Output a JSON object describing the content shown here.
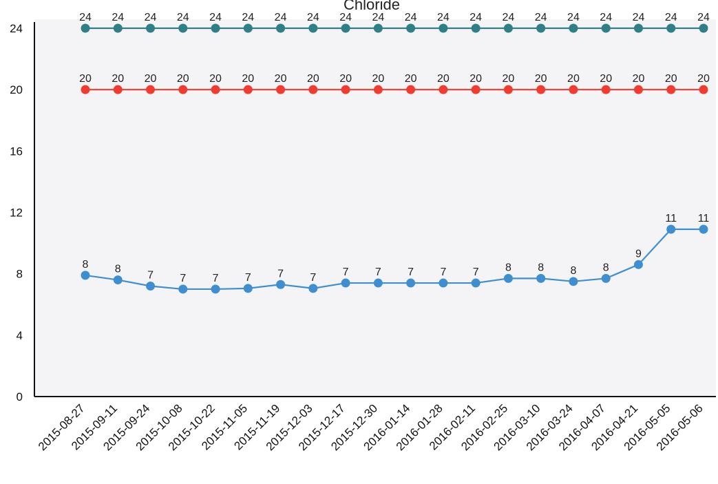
{
  "chart_data": {
    "type": "line",
    "title": "Chloride",
    "xlabel": "",
    "ylabel": "",
    "ylim": [
      0,
      24
    ],
    "yticks": [
      "0",
      "4",
      "8",
      "12",
      "16",
      "20",
      "24"
    ],
    "grid": false,
    "legend": "none",
    "categories": [
      "2015-08-27",
      "2015-09-11",
      "2015-09-24",
      "2015-10-08",
      "2015-10-22",
      "2015-11-05",
      "2015-11-19",
      "2015-12-03",
      "2015-12-17",
      "2015-12-30",
      "2016-01-14",
      "2016-01-28",
      "2016-02-11",
      "2016-02-25",
      "2016-03-10",
      "2016-03-24",
      "2016-04-07",
      "2016-04-21",
      "2016-05-05",
      "2016-05-06"
    ],
    "series": [
      {
        "color": "#2f7f86",
        "values": [
          24,
          24,
          24,
          24,
          24,
          24,
          24,
          24,
          24,
          24,
          24,
          24,
          24,
          24,
          24,
          24,
          24,
          24,
          24,
          24
        ],
        "labels": [
          "24",
          "24",
          "24",
          "24",
          "24",
          "24",
          "24",
          "24",
          "24",
          "24",
          "24",
          "24",
          "24",
          "24",
          "24",
          "24",
          "24",
          "24",
          "24",
          "24"
        ]
      },
      {
        "color": "#ef3b30",
        "values": [
          20,
          20,
          20,
          20,
          20,
          20,
          20,
          20,
          20,
          20,
          20,
          20,
          20,
          20,
          20,
          20,
          20,
          20,
          20,
          20
        ],
        "labels": [
          "20",
          "20",
          "20",
          "20",
          "20",
          "20",
          "20",
          "20",
          "20",
          "20",
          "20",
          "20",
          "20",
          "20",
          "20",
          "20",
          "20",
          "20",
          "20",
          "20"
        ]
      },
      {
        "color": "#3f8fd0",
        "values": [
          7.9,
          7.6,
          7.2,
          7.0,
          7.0,
          7.05,
          7.3,
          7.05,
          7.4,
          7.4,
          7.4,
          7.4,
          7.4,
          7.7,
          7.7,
          7.5,
          7.7,
          8.6,
          10.9,
          10.9
        ],
        "labels": [
          "8",
          "8",
          "7",
          "7",
          "7",
          "7",
          "7",
          "7",
          "7",
          "7",
          "7",
          "7",
          "7",
          "8",
          "8",
          "8",
          "8",
          "9",
          "11",
          "11"
        ]
      }
    ]
  }
}
